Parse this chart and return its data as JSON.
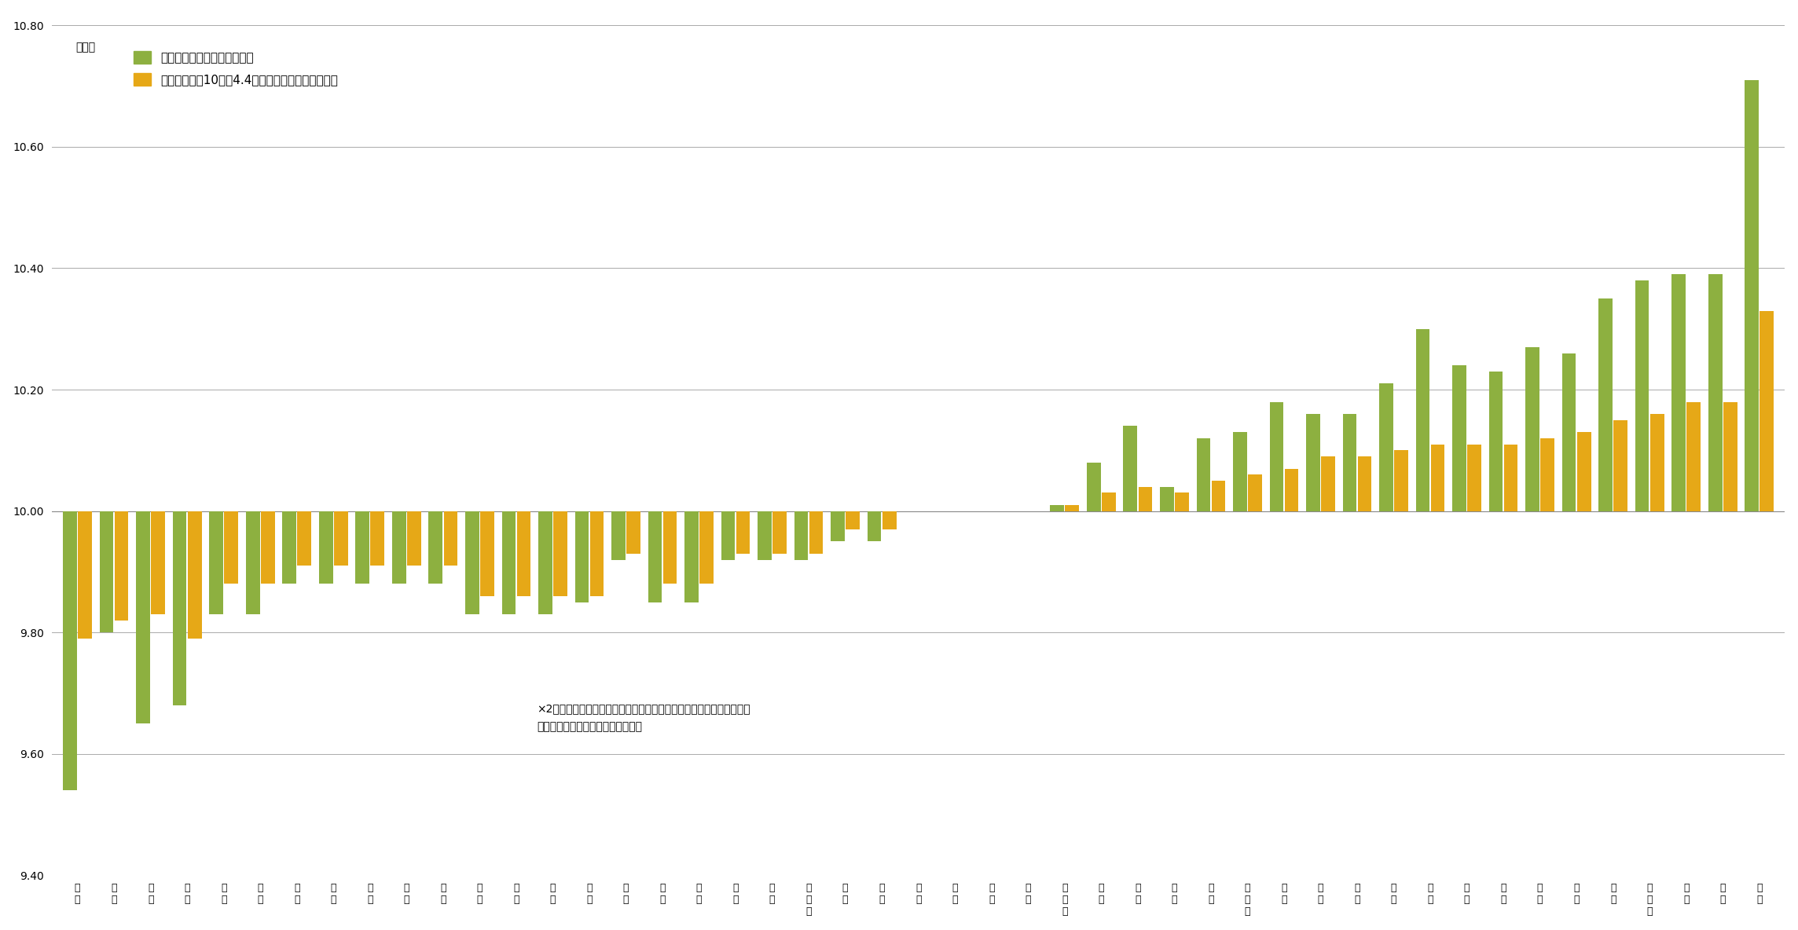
{
  "pref_labels": [
    "新\n潟",
    "富\n山",
    "沖\n縄",
    "長\n野",
    "静\n岡",
    "福\n島",
    "埼\n玉",
    "茨\n城",
    "岩\n手",
    "福\n井",
    "三\n重",
    "岐\n阜",
    "千\n葉",
    "群\n馬",
    "栃\n木",
    "宮\n崎",
    "東\n京",
    "宮\n城",
    "鳥\n取",
    "奈\n良",
    "神\n奪\n川",
    "青\n森",
    "愛\n知",
    "石\n川",
    "滋\n賀",
    "山\n梨",
    "山\n形",
    "和\n歌\n山",
    "京\n都",
    "愛\n媛",
    "大\n分",
    "広\n島",
    "鹿\n児\n島",
    "兵\n庫",
    "大\n阪",
    "島\n根",
    "高\n知",
    "熊\n本",
    "福\n岡",
    "岡\n山",
    "秋\n田",
    "長\n崎",
    "山\n口",
    "北\n海\n道",
    "香\n川",
    "徳\n島",
    "佐\n賀"
  ],
  "green_values": [
    9.54,
    9.8,
    9.65,
    9.68,
    9.83,
    9.83,
    9.88,
    9.88,
    9.88,
    9.88,
    9.88,
    9.83,
    9.83,
    9.83,
    9.85,
    9.92,
    9.85,
    9.85,
    9.92,
    9.92,
    9.92,
    9.95,
    9.95,
    10.0,
    10.0,
    10.0,
    10.0,
    10.01,
    10.08,
    10.14,
    10.04,
    10.12,
    10.13,
    10.18,
    10.16,
    10.16,
    10.21,
    10.3,
    10.24,
    10.23,
    10.27,
    10.26,
    10.35,
    10.38,
    10.39,
    10.39,
    10.71
  ],
  "orange_values": [
    9.79,
    9.82,
    9.83,
    9.79,
    9.88,
    9.88,
    9.91,
    9.91,
    9.91,
    9.91,
    9.91,
    9.86,
    9.86,
    9.86,
    9.86,
    9.93,
    9.88,
    9.88,
    9.93,
    9.93,
    9.93,
    9.97,
    9.97,
    10.0,
    10.0,
    10.0,
    10.0,
    10.01,
    10.03,
    10.04,
    10.03,
    10.05,
    10.06,
    10.07,
    10.09,
    10.09,
    10.1,
    10.11,
    10.11,
    10.11,
    10.12,
    10.13,
    10.15,
    10.16,
    10.18,
    10.18,
    10.33
  ],
  "green_color": "#8db040",
  "orange_color": "#e6a817",
  "ylim_min": 9.4,
  "ylim_max": 10.82,
  "yticks": [
    9.4,
    9.6,
    9.8,
    10.0,
    10.2,
    10.4,
    10.6,
    10.8
  ],
  "legend1": "負担調整前の全国平均との差",
  "legend2": "負担調整後（10分の4.4に調整）の全国平均との差",
  "ylabel": "（％）",
  "note_line1": "×2年前の支部別収支の精算を行っているため、調整前と調整後の幅は",
  "note_line2": "　都道府県によって差があります。",
  "baseline": 10.0,
  "bar_width": 0.38,
  "bar_gap": 0.03
}
